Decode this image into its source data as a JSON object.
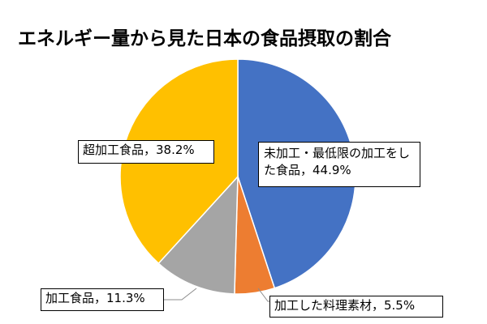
{
  "chart_data": {
    "type": "pie",
    "title": "エネルギー量から見た日本の食品摂取の割合",
    "legend": "none",
    "slices": [
      {
        "label": "未加工・最低限の加工をした食品",
        "value": 44.9,
        "color": "#4472C4",
        "text": "未加工・最低限の加工をした食品，44.9%"
      },
      {
        "label": "加工した料理素材",
        "value": 5.5,
        "color": "#ED7D31",
        "text": "加工した料理素材，5.5%"
      },
      {
        "label": "加工食品",
        "value": 11.3,
        "color": "#A5A5A5",
        "text": "加工食品，11.3%"
      },
      {
        "label": "超加工食品",
        "value": 38.2,
        "color": "#FFC000",
        "text": "超加工食品，38.2%"
      }
    ]
  }
}
